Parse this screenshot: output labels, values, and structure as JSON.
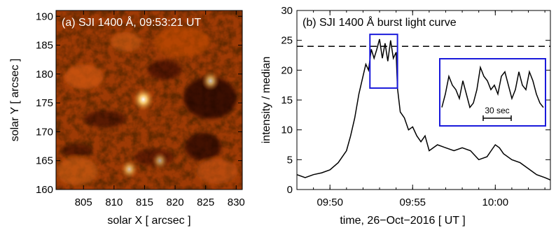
{
  "chart_data": [
    {
      "type": "heatmap",
      "panel_label": "(a) SJI 1400 Å, 09:53:21 UT",
      "xlabel": "solar X [ arcsec ]",
      "ylabel": "solar Y [ arcsec ]",
      "xlim": [
        800.5,
        831
      ],
      "ylim": [
        160,
        191
      ],
      "x_ticks": [
        "805",
        "810",
        "815",
        "820",
        "825",
        "830"
      ],
      "y_ticks": [
        "160",
        "165",
        "170",
        "175",
        "180",
        "185",
        "190"
      ],
      "colormap": "red-temperature",
      "bright_features": [
        {
          "x": 814.8,
          "y": 175.6,
          "intensity": 1.0
        },
        {
          "x": 825.8,
          "y": 178.8,
          "intensity": 0.75
        },
        {
          "x": 812.5,
          "y": 163.5,
          "intensity": 0.7
        },
        {
          "x": 817.5,
          "y": 165.0,
          "intensity": 0.6
        }
      ]
    },
    {
      "type": "line",
      "panel_label": "(b) SJI 1400 Å burst light curve",
      "xlabel": "time, 26−Oct−2016 [ UT ]",
      "ylabel": "intensity / median",
      "xlim": [
        "09:48:00",
        "10:03:20"
      ],
      "ylim": [
        0,
        30
      ],
      "x_ticks": [
        "09:50",
        "09:55",
        "10:00"
      ],
      "y_ticks": [
        "0",
        "5",
        "10",
        "15",
        "20",
        "25",
        "30"
      ],
      "threshold": 24,
      "highlight_box": {
        "x_start": "09:52:25",
        "x_end": "09:54:05",
        "y_start": 17,
        "y_end": 26
      },
      "inset_label": "30 sec",
      "series": [
        {
          "x": [
            "09:48:00",
            "09:48:30",
            "09:49:00",
            "09:49:30",
            "09:50:00",
            "09:50:30",
            "09:51:00",
            "09:51:15",
            "09:51:30",
            "09:51:45",
            "09:52:00",
            "09:52:10",
            "09:52:20",
            "09:52:30",
            "09:52:40",
            "09:52:50",
            "09:53:00",
            "09:53:10",
            "09:53:20",
            "09:53:30",
            "09:53:40",
            "09:53:50",
            "09:54:00",
            "09:54:05",
            "09:54:15",
            "09:54:30",
            "09:54:45",
            "09:55:00",
            "09:55:15",
            "09:55:30",
            "09:55:45",
            "09:56:00",
            "09:56:30",
            "09:57:00",
            "09:57:30",
            "09:58:00",
            "09:58:30",
            "09:59:00",
            "09:59:30",
            "09:59:45",
            "10:00:00",
            "10:00:15",
            "10:00:30",
            "10:01:00",
            "10:01:30",
            "10:02:00",
            "10:02:30",
            "10:03:00",
            "10:03:20"
          ],
          "values": [
            2.5,
            2.0,
            2.5,
            2.8,
            3.3,
            4.5,
            6.5,
            9.0,
            12.0,
            16.0,
            19.0,
            21.0,
            20.0,
            23.5,
            22.0,
            23.5,
            25.2,
            22.0,
            24.5,
            21.5,
            25.0,
            22.0,
            23.0,
            17.0,
            13.0,
            12.0,
            10.0,
            10.5,
            9.0,
            8.0,
            9.0,
            6.5,
            7.5,
            7.0,
            6.5,
            7.0,
            6.5,
            5.0,
            5.5,
            6.5,
            7.5,
            7.0,
            6.0,
            5.0,
            4.5,
            3.5,
            2.5,
            2.0,
            1.6
          ]
        }
      ],
      "inset_series": [
        {
          "values": [
            17.5,
            19.0,
            21.0,
            20.0,
            19.5,
            18.5,
            20.5,
            19.0,
            17.5,
            18.0,
            19.5,
            22.0,
            21.0,
            20.5,
            19.5,
            20.0,
            19.0,
            21.0,
            21.5,
            20.0,
            18.5,
            19.5,
            21.5,
            20.0,
            19.5,
            21.5,
            20.5,
            19.0,
            18.0,
            17.5
          ]
        }
      ]
    }
  ]
}
